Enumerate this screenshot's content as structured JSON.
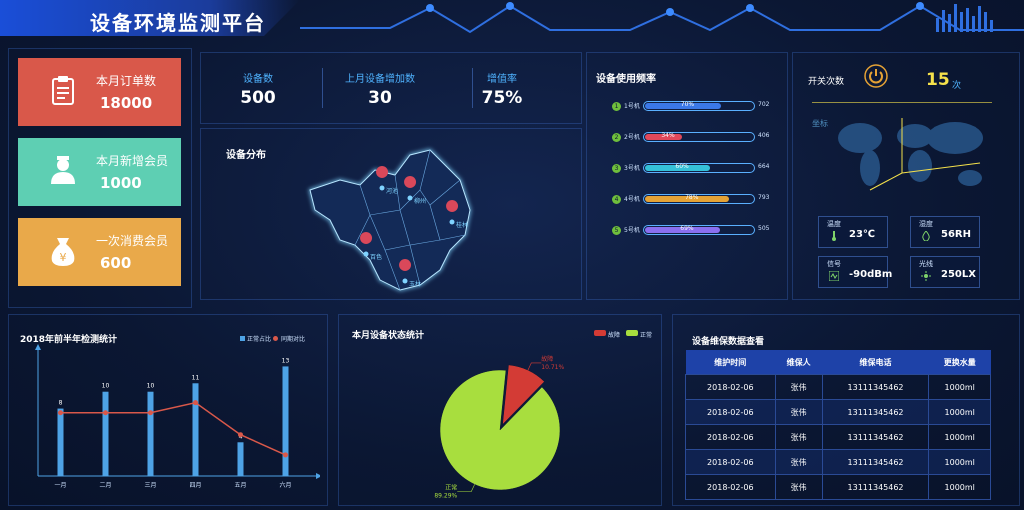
{
  "header": {
    "title": "设备环境监测平台"
  },
  "cards": [
    {
      "label": "本月订单数",
      "value": "18000",
      "color": "#d9584a",
      "icon": "clipboard-icon"
    },
    {
      "label": "本月新增会员",
      "value": "1000",
      "color": "#5ecfb3",
      "icon": "member-icon"
    },
    {
      "label": "一次消费会员",
      "value": "600",
      "color": "#e9a94a",
      "icon": "money-bag-icon"
    }
  ],
  "stats": [
    {
      "label": "设备数",
      "value": "500"
    },
    {
      "label": "上月设备增加数",
      "value": "30"
    },
    {
      "label": "增值率",
      "value": "75%"
    }
  ],
  "distribution": {
    "title": "设备分布",
    "markers": [
      "河池",
      "柳州",
      "桂林",
      "百色",
      "玉林"
    ]
  },
  "usage": {
    "title": "设备使用频率",
    "rows": [
      {
        "num": "1",
        "name": "1号机",
        "pct_text": "70%",
        "pct": 70,
        "count": "702",
        "color": "#3b78e7"
      },
      {
        "num": "2",
        "name": "2号机",
        "pct_text": "34%",
        "pct": 34,
        "count": "406",
        "color": "#e0485a"
      },
      {
        "num": "3",
        "name": "3号机",
        "pct_text": "60%",
        "pct": 60,
        "count": "664",
        "color": "#35c1d8"
      },
      {
        "num": "4",
        "name": "4号机",
        "pct_text": "78%",
        "pct": 78,
        "count": "793",
        "color": "#e5a235"
      },
      {
        "num": "5",
        "name": "5号机",
        "pct_text": "69%",
        "pct": 69,
        "count": "505",
        "color": "#8a6ff0"
      }
    ]
  },
  "switch": {
    "label": "开关次数",
    "value": "15",
    "unit": "次",
    "coord_label": "坐标"
  },
  "env": [
    {
      "label": "温度",
      "value": "23℃",
      "icon": "thermometer-icon"
    },
    {
      "label": "湿度",
      "value": "56RH",
      "icon": "humidity-icon"
    },
    {
      "label": "信号",
      "value": "-90dBm",
      "icon": "signal-icon"
    },
    {
      "label": "光线",
      "value": "250LX",
      "icon": "sun-icon"
    }
  ],
  "chart_data": [
    {
      "type": "bar",
      "title": "2018年前半年检测统计",
      "categories": [
        "一月",
        "二月",
        "三月",
        "四月",
        "五月",
        "六月"
      ],
      "series": [
        {
          "name": "正常占比",
          "values": [
            8,
            10,
            10,
            11,
            4,
            13
          ],
          "color": "#4ea3e6"
        },
        {
          "name": "同期对比",
          "type": "line",
          "values": [
            7.5,
            7.5,
            7.5,
            8.7,
            4.9,
            2.5
          ],
          "color": "#d9584a"
        }
      ],
      "legend_position": "top-right"
    },
    {
      "type": "pie",
      "title": "本月设备状态统计",
      "slices": [
        {
          "name": "故障",
          "value": 10.71,
          "label": "10.71%",
          "color": "#d33b35"
        },
        {
          "name": "正常",
          "value": 89.29,
          "label": "89.29%",
          "color": "#a8de3e"
        }
      ],
      "legend_position": "top-right"
    }
  ],
  "maintenance": {
    "title": "设备维保数据查看",
    "headers": [
      "维护时间",
      "维保人",
      "维保电话",
      "更换水量"
    ],
    "rows": [
      [
        "2018-02-06",
        "张伟",
        "13111345462",
        "1000ml"
      ],
      [
        "2018-02-06",
        "张伟",
        "13111345462",
        "1000ml"
      ],
      [
        "2018-02-06",
        "张伟",
        "13111345462",
        "1000ml"
      ],
      [
        "2018-02-06",
        "张伟",
        "13111345462",
        "1000ml"
      ],
      [
        "2018-02-06",
        "张伟",
        "13111345462",
        "1000ml"
      ]
    ]
  }
}
